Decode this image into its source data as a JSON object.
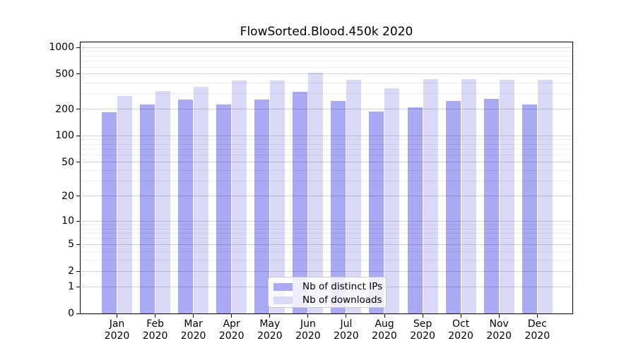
{
  "chart_data": {
    "type": "bar",
    "title": "FlowSorted.Blood.450k 2020",
    "x_categories": [
      "Jan",
      "Feb",
      "Mar",
      "Apr",
      "May",
      "Jun",
      "Jul",
      "Aug",
      "Sep",
      "Oct",
      "Nov",
      "Dec"
    ],
    "x_year_label": "2020",
    "series": [
      {
        "name": "Nb of distinct IPs",
        "color": "#a9a9f4",
        "values": [
          185,
          226,
          258,
          226,
          258,
          318,
          250,
          188,
          211,
          250,
          261,
          226
        ]
      },
      {
        "name": "Nb of downloads",
        "color": "#dadaf8",
        "values": [
          283,
          320,
          357,
          426,
          421,
          520,
          433,
          345,
          440,
          441,
          434,
          433
        ]
      }
    ],
    "yscale": "log1p",
    "ylim": [
      0,
      1140
    ],
    "yticks": [
      0,
      1,
      2,
      5,
      10,
      20,
      50,
      100,
      200,
      500,
      1000
    ],
    "minor_gridlines": [
      3,
      4,
      6,
      7,
      8,
      9,
      30,
      40,
      60,
      70,
      80,
      90,
      300,
      400,
      600,
      700,
      800,
      900
    ],
    "grid": true,
    "legend_position": "lower center"
  },
  "colors": {
    "axis": "#000000",
    "grid_major": "rgba(0,0,0,0.16)",
    "grid_minor": "rgba(0,0,0,0.07)",
    "legend_background": "rgba(255,255,255,0.8)",
    "legend_border": "#cccccc"
  }
}
